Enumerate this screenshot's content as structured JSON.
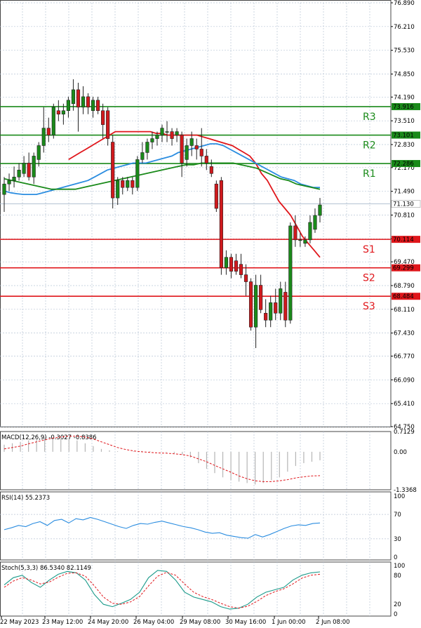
{
  "chart_data": {
    "type": "candlestick",
    "grid": true,
    "price_axis": {
      "ticks": [
        "76.890",
        "76.210",
        "75.530",
        "74.850",
        "74.190",
        "73.510",
        "72.830",
        "72.170",
        "71.490",
        "70.810",
        "70.130",
        "69.470",
        "68.790",
        "68.110",
        "67.430",
        "66.770",
        "66.090",
        "65.410",
        "64.750"
      ],
      "range": [
        64.75,
        76.89
      ]
    },
    "x_axis": {
      "labels": [
        "22 May 2023",
        "23 May 12:00",
        "24 May 20:00",
        "26 May 04:00",
        "29 May 08:00",
        "30 May 16:00",
        "1 Jun 00:00",
        "2 Jun 08:00"
      ]
    },
    "current_price": {
      "label": "71.130",
      "value": 71.13,
      "color": "#ffffff"
    },
    "levels": [
      {
        "name": "R3",
        "label": "73.916",
        "value": 73.916,
        "color": "#1a8a1a"
      },
      {
        "name": "R2",
        "label": "73.101",
        "value": 73.101,
        "color": "#1a8a1a"
      },
      {
        "name": "R1",
        "label": "72.286",
        "value": 72.286,
        "color": "#1a8a1a"
      },
      {
        "name": "S1",
        "label": "70.114",
        "value": 70.114,
        "color": "#e0161b"
      },
      {
        "name": "S2",
        "label": "69.299",
        "value": 69.299,
        "color": "#e0161b"
      },
      {
        "name": "S3",
        "label": "68.484",
        "value": 68.484,
        "color": "#e0161b"
      }
    ],
    "candles": [
      {
        "o": 71.4,
        "h": 71.9,
        "l": 70.9,
        "c": 71.7
      },
      {
        "o": 71.7,
        "h": 72.0,
        "l": 71.5,
        "c": 71.8
      },
      {
        "o": 71.8,
        "h": 72.2,
        "l": 71.6,
        "c": 71.9
      },
      {
        "o": 71.9,
        "h": 72.3,
        "l": 71.8,
        "c": 72.1
      },
      {
        "o": 72.0,
        "h": 72.5,
        "l": 71.9,
        "c": 72.3
      },
      {
        "o": 72.3,
        "h": 72.6,
        "l": 71.8,
        "c": 71.9
      },
      {
        "o": 71.9,
        "h": 72.6,
        "l": 71.7,
        "c": 72.5
      },
      {
        "o": 72.4,
        "h": 72.9,
        "l": 72.2,
        "c": 72.8
      },
      {
        "o": 72.8,
        "h": 73.9,
        "l": 72.6,
        "c": 73.3
      },
      {
        "o": 73.3,
        "h": 73.6,
        "l": 72.9,
        "c": 73.1
      },
      {
        "o": 73.1,
        "h": 74.0,
        "l": 73.0,
        "c": 73.9
      },
      {
        "o": 73.8,
        "h": 74.1,
        "l": 73.5,
        "c": 73.7
      },
      {
        "o": 73.7,
        "h": 74.0,
        "l": 73.4,
        "c": 73.8
      },
      {
        "o": 73.8,
        "h": 74.2,
        "l": 73.6,
        "c": 74.1
      },
      {
        "o": 74.0,
        "h": 74.7,
        "l": 73.8,
        "c": 74.4
      },
      {
        "o": 74.4,
        "h": 74.6,
        "l": 73.2,
        "c": 73.9
      },
      {
        "o": 73.9,
        "h": 74.5,
        "l": 73.7,
        "c": 74.2
      },
      {
        "o": 74.2,
        "h": 74.3,
        "l": 73.7,
        "c": 73.9
      },
      {
        "o": 73.8,
        "h": 74.2,
        "l": 73.6,
        "c": 74.1
      },
      {
        "o": 74.1,
        "h": 74.2,
        "l": 73.7,
        "c": 73.8
      },
      {
        "o": 73.8,
        "h": 74.0,
        "l": 73.0,
        "c": 73.4
      },
      {
        "o": 73.8,
        "h": 73.9,
        "l": 72.8,
        "c": 73.0
      },
      {
        "o": 72.9,
        "h": 73.1,
        "l": 71.0,
        "c": 71.3
      },
      {
        "o": 71.3,
        "h": 71.9,
        "l": 71.1,
        "c": 71.8
      },
      {
        "o": 71.8,
        "h": 71.9,
        "l": 71.4,
        "c": 71.6
      },
      {
        "o": 71.6,
        "h": 71.9,
        "l": 71.5,
        "c": 71.8
      },
      {
        "o": 71.8,
        "h": 71.9,
        "l": 71.4,
        "c": 71.6
      },
      {
        "o": 71.6,
        "h": 72.5,
        "l": 71.5,
        "c": 72.4
      },
      {
        "o": 72.4,
        "h": 72.9,
        "l": 72.3,
        "c": 72.6
      },
      {
        "o": 72.6,
        "h": 73.0,
        "l": 72.4,
        "c": 72.9
      },
      {
        "o": 72.9,
        "h": 73.2,
        "l": 72.7,
        "c": 73.0
      },
      {
        "o": 73.0,
        "h": 73.2,
        "l": 72.8,
        "c": 73.1
      },
      {
        "o": 73.1,
        "h": 73.4,
        "l": 72.9,
        "c": 73.3
      },
      {
        "o": 73.2,
        "h": 73.5,
        "l": 72.9,
        "c": 73.2
      },
      {
        "o": 73.2,
        "h": 73.3,
        "l": 72.8,
        "c": 73.0
      },
      {
        "o": 73.1,
        "h": 73.3,
        "l": 72.9,
        "c": 73.2
      },
      {
        "o": 73.1,
        "h": 73.2,
        "l": 71.9,
        "c": 72.3
      },
      {
        "o": 72.4,
        "h": 73.0,
        "l": 72.2,
        "c": 72.8
      },
      {
        "o": 72.8,
        "h": 73.2,
        "l": 72.5,
        "c": 73.0
      },
      {
        "o": 72.8,
        "h": 73.0,
        "l": 72.4,
        "c": 72.7
      },
      {
        "o": 72.7,
        "h": 73.3,
        "l": 72.2,
        "c": 72.5
      },
      {
        "o": 72.5,
        "h": 72.7,
        "l": 72.1,
        "c": 72.3
      },
      {
        "o": 72.2,
        "h": 72.4,
        "l": 71.9,
        "c": 72.0
      },
      {
        "o": 71.7,
        "h": 71.8,
        "l": 70.9,
        "c": 71.0
      },
      {
        "o": 71.8,
        "h": 71.9,
        "l": 69.1,
        "c": 69.3
      },
      {
        "o": 69.3,
        "h": 69.8,
        "l": 69.1,
        "c": 69.6
      },
      {
        "o": 69.6,
        "h": 69.7,
        "l": 69.0,
        "c": 69.2
      },
      {
        "o": 69.5,
        "h": 69.7,
        "l": 69.1,
        "c": 69.2
      },
      {
        "o": 69.4,
        "h": 69.7,
        "l": 69.0,
        "c": 69.1
      },
      {
        "o": 69.1,
        "h": 69.4,
        "l": 68.5,
        "c": 68.9
      },
      {
        "o": 68.9,
        "h": 69.0,
        "l": 67.5,
        "c": 67.6
      },
      {
        "o": 67.6,
        "h": 69.1,
        "l": 67.0,
        "c": 68.8
      },
      {
        "o": 68.8,
        "h": 69.1,
        "l": 68.0,
        "c": 68.1
      },
      {
        "o": 68.0,
        "h": 68.4,
        "l": 67.6,
        "c": 67.8
      },
      {
        "o": 67.8,
        "h": 68.5,
        "l": 67.6,
        "c": 68.3
      },
      {
        "o": 68.3,
        "h": 68.7,
        "l": 67.8,
        "c": 68.0
      },
      {
        "o": 68.0,
        "h": 68.9,
        "l": 67.8,
        "c": 68.7
      },
      {
        "o": 68.6,
        "h": 68.9,
        "l": 67.6,
        "c": 67.8
      },
      {
        "o": 67.8,
        "h": 70.6,
        "l": 67.7,
        "c": 70.5
      },
      {
        "o": 70.5,
        "h": 70.8,
        "l": 69.9,
        "c": 70.1
      },
      {
        "o": 70.1,
        "h": 70.3,
        "l": 69.9,
        "c": 70.1
      },
      {
        "o": 70.0,
        "h": 70.2,
        "l": 69.9,
        "c": 70.1
      },
      {
        "o": 70.1,
        "h": 70.8,
        "l": 70.0,
        "c": 70.6
      },
      {
        "o": 70.4,
        "h": 71.0,
        "l": 70.3,
        "c": 70.8
      },
      {
        "o": 70.8,
        "h": 71.3,
        "l": 70.6,
        "c": 71.1
      }
    ],
    "moving_averages": [
      {
        "color": "#e0161b",
        "values": [
          null,
          null,
          null,
          null,
          null,
          null,
          null,
          null,
          null,
          null,
          null,
          72.4,
          72.5,
          72.6,
          72.7,
          72.8,
          72.9,
          73.0,
          73.1,
          73.2,
          73.2,
          73.2,
          73.2,
          73.2,
          73.2,
          73.2,
          73.15,
          73.15,
          73.1,
          73.1,
          73.1,
          73.1,
          73.1,
          73.1,
          73.05,
          73.0,
          72.95,
          72.9,
          72.85,
          72.8,
          72.7,
          72.6,
          72.5,
          72.3,
          72.0,
          71.8,
          71.5,
          71.2,
          71.0,
          70.8,
          70.5,
          70.2,
          70.0,
          69.8,
          69.6
        ]
      },
      {
        "color": "#2b8de0",
        "values": [
          71.5,
          71.45,
          71.42,
          71.4,
          71.4,
          71.4,
          71.45,
          71.5,
          71.55,
          71.6,
          71.65,
          71.7,
          71.75,
          71.8,
          71.9,
          72.0,
          72.1,
          72.15,
          72.2,
          72.25,
          72.3,
          72.3,
          72.3,
          72.35,
          72.4,
          72.45,
          72.5,
          72.6,
          72.65,
          72.7,
          72.75,
          72.8,
          72.85,
          72.85,
          72.8,
          72.7,
          72.6,
          72.5,
          72.4,
          72.3,
          72.2,
          72.1,
          72.0,
          71.9,
          71.85,
          71.8,
          71.7,
          71.65,
          71.6,
          71.6
        ]
      },
      {
        "color": "#1a8a1a",
        "values": [
          71.85,
          71.8,
          71.75,
          71.7,
          71.65,
          71.6,
          71.55,
          71.55,
          71.55,
          71.55,
          71.6,
          71.65,
          71.7,
          71.75,
          71.8,
          71.85,
          71.9,
          71.95,
          72.0,
          72.05,
          72.1,
          72.15,
          72.2,
          72.25,
          72.25,
          72.3,
          72.3,
          72.3,
          72.3,
          72.3,
          72.25,
          72.2,
          72.15,
          72.05,
          71.95,
          71.85,
          71.8,
          71.7,
          71.65,
          71.6,
          71.55
        ]
      }
    ],
    "macd": {
      "title": "MACD(12,26,9) -0.3027 -0.8386",
      "ticks": [
        "0.7129",
        "0.00",
        "-1.3368"
      ],
      "range": [
        -1.3368,
        0.7129
      ],
      "histogram": [
        0.25,
        0.3,
        0.35,
        0.4,
        0.45,
        0.5,
        0.5,
        0.5,
        0.45,
        0.4,
        0.3,
        0.2,
        0.1,
        0.05,
        0.02,
        0.0,
        0.02,
        0.03,
        0.02,
        0.0,
        -0.02,
        -0.05,
        -0.1,
        -0.2,
        -0.4,
        -0.6,
        -0.75,
        -0.9,
        -1.0,
        -1.05,
        -1.1,
        -1.15,
        -1.1,
        -1.0,
        -0.9,
        -0.7,
        -0.5,
        -0.4,
        -0.35,
        -0.3
      ],
      "signal": [
        0.1,
        0.15,
        0.2,
        0.28,
        0.35,
        0.42,
        0.48,
        0.52,
        0.55,
        0.55,
        0.52,
        0.45,
        0.35,
        0.25,
        0.15,
        0.08,
        0.03,
        0.0,
        -0.02,
        -0.04,
        -0.05,
        -0.07,
        -0.1,
        -0.15,
        -0.25,
        -0.35,
        -0.48,
        -0.6,
        -0.72,
        -0.85,
        -0.95,
        -1.02,
        -1.05,
        -1.05,
        -1.02,
        -0.98,
        -0.92,
        -0.88,
        -0.85,
        -0.84
      ]
    },
    "rsi": {
      "title": "RSI(14) 55.2373",
      "ticks": [
        "100",
        "70",
        "30",
        "0"
      ],
      "values": [
        45,
        48,
        52,
        50,
        55,
        58,
        52,
        60,
        62,
        56,
        63,
        61,
        65,
        62,
        58,
        54,
        50,
        47,
        52,
        55,
        54,
        57,
        59,
        56,
        53,
        50,
        48,
        45,
        41,
        39,
        40,
        36,
        34,
        32,
        31,
        37,
        33,
        37,
        42,
        47,
        51,
        53,
        52,
        55,
        56
      ]
    },
    "stochastic": {
      "title": "Stoch(5,3,3) 86.5340 82.1149",
      "ticks": [
        "100",
        "80",
        "20",
        "0"
      ],
      "k": [
        60,
        75,
        80,
        65,
        55,
        70,
        82,
        88,
        85,
        70,
        40,
        20,
        15,
        22,
        30,
        45,
        75,
        90,
        88,
        70,
        45,
        35,
        30,
        25,
        15,
        10,
        12,
        20,
        35,
        45,
        50,
        55,
        70,
        80,
        85,
        87
      ],
      "d": [
        55,
        68,
        75,
        70,
        62,
        66,
        76,
        84,
        85,
        78,
        58,
        35,
        22,
        20,
        25,
        36,
        58,
        78,
        86,
        80,
        62,
        45,
        36,
        30,
        22,
        15,
        12,
        16,
        26,
        38,
        46,
        52,
        62,
        74,
        80,
        82
      ]
    }
  }
}
